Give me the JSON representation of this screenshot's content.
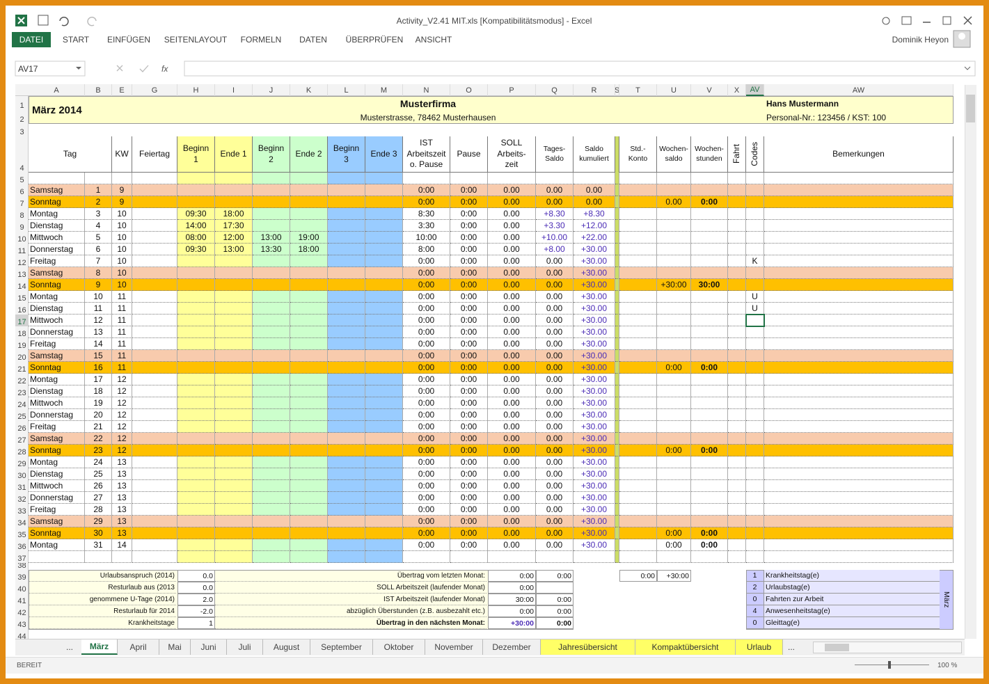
{
  "window": {
    "title": "Activity_V2.41 MIT.xls [Kompatibilitätsmodus] - Excel",
    "user": "Dominik Heyon"
  },
  "ribbon_tabs": [
    "DATEI",
    "START",
    "EINFÜGEN",
    "SEITENLAYOUT",
    "FORMELN",
    "DATEN",
    "ÜBERPRÜFEN",
    "ANSICHT"
  ],
  "formula_bar": {
    "name_box": "AV17",
    "fx": "fx"
  },
  "column_letters": [
    "A",
    "B",
    "E",
    "G",
    "H",
    "I",
    "J",
    "K",
    "L",
    "M",
    "N",
    "O",
    "P",
    "Q",
    "R",
    "S",
    "T",
    "U",
    "V",
    "X",
    "AV",
    "AW"
  ],
  "row_numbers": [
    1,
    2,
    3,
    4,
    5,
    6,
    7,
    8,
    9,
    10,
    11,
    12,
    13,
    14,
    15,
    16,
    17,
    18,
    19,
    20,
    21,
    22,
    23,
    24,
    25,
    26,
    27,
    28,
    29,
    30,
    31,
    32,
    33,
    34,
    35,
    36,
    37,
    38,
    39,
    40,
    41,
    42,
    43,
    44
  ],
  "header": {
    "month": "März 2014",
    "company": "Musterfirma",
    "address": "Musterstrasse, 78462 Musterhausen",
    "employee": "Hans Mustermann",
    "personal": "Personal-Nr.: 123456 / KST: 100"
  },
  "table": {
    "columns": [
      "Tag",
      "KW",
      "Feiertag",
      "Beginn\n1",
      "Ende 1",
      "Beginn\n2",
      "Ende 2",
      "Beginn\n3",
      "Ende 3",
      "IST\nArbeitszeit\no. Pause",
      "Pause",
      "SOLL\nArbeits-\nzeit",
      "Tages-\nSaldo",
      "Saldo\nkumuliert",
      "Std.-\nKonto",
      "Wochen-\nsaldo",
      "Wochen-\nstunden",
      "Fahrt",
      "Codes",
      "Bemerkungen"
    ],
    "weekend_fills": [
      "#f8cbad",
      "#ffc000"
    ],
    "row_fills": [
      0,
      1,
      null,
      null,
      null,
      null,
      null,
      0,
      1,
      null,
      null,
      null,
      null,
      null,
      0,
      1,
      null,
      null,
      null,
      null,
      null,
      0,
      1,
      null,
      null,
      null,
      null,
      null,
      0,
      1,
      null
    ],
    "rows": [
      [
        "Samstag",
        1,
        9,
        null,
        null,
        null,
        null,
        null,
        null,
        "0:00",
        "0:00",
        "0.00",
        "0.00",
        "0.00",
        null,
        null,
        null
      ],
      [
        "Sonntag",
        2,
        9,
        null,
        null,
        null,
        null,
        null,
        null,
        "0:00",
        "0:00",
        "0.00",
        "0.00",
        "0.00",
        "0.00",
        "0:00",
        null
      ],
      [
        "Montag",
        3,
        10,
        "09:30",
        "18:00",
        null,
        null,
        null,
        null,
        "8:30",
        "0:00",
        "0.00",
        "+8.30",
        "+8.30",
        null,
        null,
        null
      ],
      [
        "Dienstag",
        4,
        10,
        "14:00",
        "17:30",
        null,
        null,
        null,
        null,
        "3:30",
        "0:00",
        "0.00",
        "+3.30",
        "+12.00",
        null,
        null,
        null
      ],
      [
        "Mittwoch",
        5,
        10,
        "08:00",
        "12:00",
        "13:00",
        "19:00",
        null,
        null,
        "10:00",
        "0:00",
        "0.00",
        "+10.00",
        "+22.00",
        null,
        null,
        null
      ],
      [
        "Donnerstag",
        6,
        10,
        "09:30",
        "13:00",
        "13:30",
        "18:00",
        null,
        null,
        "8:00",
        "0:00",
        "0.00",
        "+8.00",
        "+30.00",
        null,
        null,
        null
      ],
      [
        "Freitag",
        7,
        10,
        null,
        null,
        null,
        null,
        null,
        null,
        "0:00",
        "0:00",
        "0.00",
        "0.00",
        "+30.00",
        null,
        null,
        "K"
      ],
      [
        "Samstag",
        8,
        10,
        null,
        null,
        null,
        null,
        null,
        null,
        "0:00",
        "0:00",
        "0.00",
        "0.00",
        "+30.00",
        null,
        null,
        null
      ],
      [
        "Sonntag",
        9,
        10,
        null,
        null,
        null,
        null,
        null,
        null,
        "0:00",
        "0:00",
        "0.00",
        "0.00",
        "+30.00",
        "+30:00",
        "30:00",
        null
      ],
      [
        "Montag",
        10,
        11,
        null,
        null,
        null,
        null,
        null,
        null,
        "0:00",
        "0:00",
        "0.00",
        "0.00",
        "+30.00",
        null,
        null,
        "U"
      ],
      [
        "Dienstag",
        11,
        11,
        null,
        null,
        null,
        null,
        null,
        null,
        "0:00",
        "0:00",
        "0.00",
        "0.00",
        "+30.00",
        null,
        null,
        "U"
      ],
      [
        "Mittwoch",
        12,
        11,
        null,
        null,
        null,
        null,
        null,
        null,
        "0:00",
        "0:00",
        "0.00",
        "0.00",
        "+30.00",
        null,
        null,
        null
      ],
      [
        "Donnerstag",
        13,
        11,
        null,
        null,
        null,
        null,
        null,
        null,
        "0:00",
        "0:00",
        "0.00",
        "0.00",
        "+30.00",
        null,
        null,
        null
      ],
      [
        "Freitag",
        14,
        11,
        null,
        null,
        null,
        null,
        null,
        null,
        "0:00",
        "0:00",
        "0.00",
        "0.00",
        "+30.00",
        null,
        null,
        null
      ],
      [
        "Samstag",
        15,
        11,
        null,
        null,
        null,
        null,
        null,
        null,
        "0:00",
        "0:00",
        "0.00",
        "0.00",
        "+30.00",
        null,
        null,
        null
      ],
      [
        "Sonntag",
        16,
        11,
        null,
        null,
        null,
        null,
        null,
        null,
        "0:00",
        "0:00",
        "0.00",
        "0.00",
        "+30.00",
        "0:00",
        "0:00",
        null
      ],
      [
        "Montag",
        17,
        12,
        null,
        null,
        null,
        null,
        null,
        null,
        "0:00",
        "0:00",
        "0.00",
        "0.00",
        "+30.00",
        null,
        null,
        null
      ],
      [
        "Dienstag",
        18,
        12,
        null,
        null,
        null,
        null,
        null,
        null,
        "0:00",
        "0:00",
        "0.00",
        "0.00",
        "+30.00",
        null,
        null,
        null
      ],
      [
        "Mittwoch",
        19,
        12,
        null,
        null,
        null,
        null,
        null,
        null,
        "0:00",
        "0:00",
        "0.00",
        "0.00",
        "+30.00",
        null,
        null,
        null
      ],
      [
        "Donnerstag",
        20,
        12,
        null,
        null,
        null,
        null,
        null,
        null,
        "0:00",
        "0:00",
        "0.00",
        "0.00",
        "+30.00",
        null,
        null,
        null
      ],
      [
        "Freitag",
        21,
        12,
        null,
        null,
        null,
        null,
        null,
        null,
        "0:00",
        "0:00",
        "0.00",
        "0.00",
        "+30.00",
        null,
        null,
        null
      ],
      [
        "Samstag",
        22,
        12,
        null,
        null,
        null,
        null,
        null,
        null,
        "0:00",
        "0:00",
        "0.00",
        "0.00",
        "+30.00",
        null,
        null,
        null
      ],
      [
        "Sonntag",
        23,
        12,
        null,
        null,
        null,
        null,
        null,
        null,
        "0:00",
        "0:00",
        "0.00",
        "0.00",
        "+30.00",
        "0:00",
        "0:00",
        null
      ],
      [
        "Montag",
        24,
        13,
        null,
        null,
        null,
        null,
        null,
        null,
        "0:00",
        "0:00",
        "0.00",
        "0.00",
        "+30.00",
        null,
        null,
        null
      ],
      [
        "Dienstag",
        25,
        13,
        null,
        null,
        null,
        null,
        null,
        null,
        "0:00",
        "0:00",
        "0.00",
        "0.00",
        "+30.00",
        null,
        null,
        null
      ],
      [
        "Mittwoch",
        26,
        13,
        null,
        null,
        null,
        null,
        null,
        null,
        "0:00",
        "0:00",
        "0.00",
        "0.00",
        "+30.00",
        null,
        null,
        null
      ],
      [
        "Donnerstag",
        27,
        13,
        null,
        null,
        null,
        null,
        null,
        null,
        "0:00",
        "0:00",
        "0.00",
        "0.00",
        "+30.00",
        null,
        null,
        null
      ],
      [
        "Freitag",
        28,
        13,
        null,
        null,
        null,
        null,
        null,
        null,
        "0:00",
        "0:00",
        "0.00",
        "0.00",
        "+30.00",
        null,
        null,
        null
      ],
      [
        "Samstag",
        29,
        13,
        null,
        null,
        null,
        null,
        null,
        null,
        "0:00",
        "0:00",
        "0.00",
        "0.00",
        "+30.00",
        null,
        null,
        null
      ],
      [
        "Sonntag",
        30,
        13,
        null,
        null,
        null,
        null,
        null,
        null,
        "0:00",
        "0:00",
        "0.00",
        "0.00",
        "+30.00",
        "0:00",
        "0:00",
        null
      ],
      [
        "Montag",
        31,
        14,
        null,
        null,
        null,
        null,
        null,
        null,
        "0:00",
        "0:00",
        "0.00",
        "0.00",
        "+30.00",
        "0:00",
        "0:00",
        null
      ]
    ]
  },
  "summary_left": [
    {
      "label": "Urlaubsanspruch (2014)",
      "value": "0.0"
    },
    {
      "label": "Resturlaub aus (2013",
      "value": "0.0"
    },
    {
      "label": "genommene U-Tage (2014)",
      "value": "2.0"
    },
    {
      "label": "Resturlaub für 2014",
      "value": "-2.0"
    },
    {
      "label": "Krankheitstage",
      "value": "1"
    }
  ],
  "summary_mid": [
    {
      "label": "Übertrag vom letzten Monat:",
      "value": "0:00",
      "value2": "0:00"
    },
    {
      "label": "SOLL Arbeitszeit (laufender Monat)",
      "value": "0:00"
    },
    {
      "label": "IST Arbeitszeit (laufender Monat)",
      "value": "30:00",
      "value2": "0:00"
    },
    {
      "label": "abzüglich Überstunden (z.B. ausbezahlt etc.)",
      "value": "0:00",
      "value2": "0:00"
    },
    {
      "label": "Übertrag in den nächsten Monat:",
      "value": "+30:00",
      "value2": "0:00"
    }
  ],
  "std_konto": [
    "0:00",
    "+30:00"
  ],
  "legend": {
    "title": "März",
    "items": [
      {
        "count": "1",
        "label": "Krankheitstag(e)"
      },
      {
        "count": "2",
        "label": "Urlaubstag(e)"
      },
      {
        "count": "0",
        "label": "Fahrten zur Arbeit"
      },
      {
        "count": "4",
        "label": "Anwesenheitstag(e)"
      },
      {
        "count": "0",
        "label": "Gleittag(e)"
      }
    ]
  },
  "sheet_tabs": {
    "more": "...",
    "tabs": [
      "März",
      "April",
      "Mai",
      "Juni",
      "Juli",
      "August",
      "September",
      "Oktober",
      "November",
      "Dezember",
      "Jahresübersicht",
      "Kompaktübersicht",
      "Urlaub"
    ],
    "active": 0,
    "highlight_from": 10,
    "highlight_color": "#ffff66",
    "overflow": "..."
  },
  "status_bar": {
    "state": "BEREIT",
    "zoom": "100 %"
  }
}
